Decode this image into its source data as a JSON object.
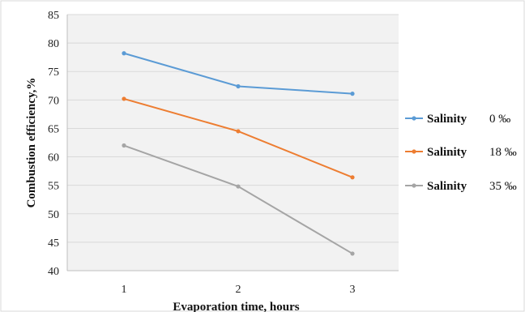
{
  "chart_data": {
    "type": "line",
    "xlabel": "Evaporation time, hours",
    "ylabel": "Combustion efficiency,%",
    "x": [
      1,
      2,
      3
    ],
    "ylim": [
      40,
      85
    ],
    "yticks": [
      40,
      45,
      50,
      55,
      60,
      65,
      70,
      75,
      80,
      85
    ],
    "grid": true,
    "legend_position": "right",
    "series": [
      {
        "name": "Salinity",
        "level": "0 ‰",
        "color": "#5b9bd5",
        "values": [
          78.2,
          72.4,
          71.1
        ]
      },
      {
        "name": "Salinity",
        "level": "18 ‰",
        "color": "#ed7d31",
        "values": [
          70.2,
          64.5,
          56.4
        ]
      },
      {
        "name": "Salinity",
        "level": "35 ‰",
        "color": "#a5a5a5",
        "values": [
          62.0,
          54.8,
          43.0
        ]
      }
    ]
  }
}
